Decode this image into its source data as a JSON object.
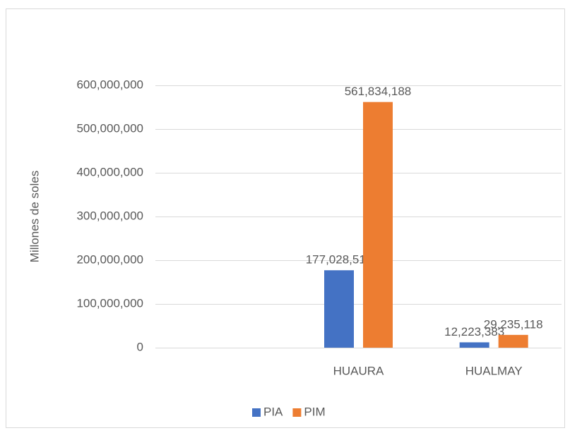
{
  "chart_data": {
    "type": "bar",
    "y_label": "Millones de soles",
    "categories": [
      null,
      "HUAURA",
      "HUALMAY"
    ],
    "series": [
      {
        "name": "PIA",
        "color": "#4472c4",
        "values": [
          null,
          177028518,
          12223383
        ],
        "value_labels": [
          null,
          "177,028,518",
          "12,223,383"
        ]
      },
      {
        "name": "PIM",
        "color": "#ed7d31",
        "values": [
          null,
          561834188,
          29235118
        ],
        "value_labels": [
          null,
          "561,834,188",
          "29,235,118"
        ]
      }
    ],
    "ylim": [
      0,
      600000000
    ],
    "yticks": [
      0,
      {
        "value": 100000000,
        "label": "100,000,000"
      },
      {
        "value": 200000000,
        "label": "200,000,000"
      },
      {
        "value": 300000000,
        "label": "300,000,000"
      },
      {
        "value": 400000000,
        "label": "400,000,000"
      },
      {
        "value": 500000000,
        "label": "500,000,000"
      },
      {
        "value": 600000000,
        "label": "600,000,000"
      }
    ],
    "grid": true,
    "legend": "bottom"
  }
}
